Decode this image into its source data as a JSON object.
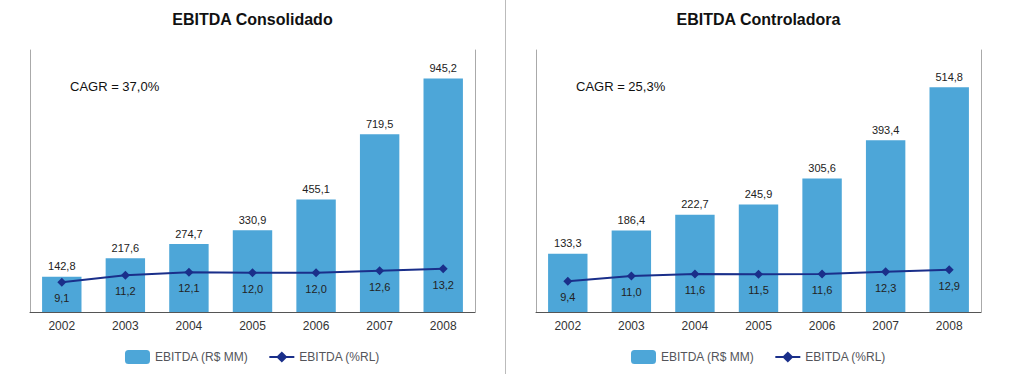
{
  "chart_data": [
    {
      "type": "bar",
      "title": "EBITDA Consolidado",
      "categories": [
        "2002",
        "2003",
        "2004",
        "2005",
        "2006",
        "2007",
        "2008"
      ],
      "series": [
        {
          "name": "EBITDA (R$ MM)",
          "type": "bar",
          "color": "#4da6d8",
          "values": [
            142.8,
            217.6,
            274.7,
            330.9,
            455.1,
            719.5,
            945.2
          ],
          "value_labels": [
            "142,8",
            "217,6",
            "274,7",
            "330,9",
            "455,1",
            "719,5",
            "945,2"
          ]
        },
        {
          "name": "EBITDA (%RL)",
          "type": "line",
          "axis": "y2",
          "color": "#1a2f8a",
          "marker": "diamond",
          "values": [
            9.1,
            11.2,
            12.1,
            12.0,
            12.0,
            12.6,
            13.2
          ],
          "value_labels": [
            "9,1",
            "11,2",
            "12,1",
            "12,0",
            "12,0",
            "12,6",
            "13,2"
          ]
        }
      ],
      "ylim": [
        0,
        1060
      ],
      "y2lim": [
        0,
        80
      ],
      "annotations": [
        "CAGR = 37,0%"
      ],
      "data_labels": true,
      "legend": "bottom",
      "grid": false,
      "tick_labels": "x"
    },
    {
      "type": "bar",
      "title": "EBITDA Controladora",
      "categories": [
        "2002",
        "2003",
        "2004",
        "2005",
        "2006",
        "2007",
        "2008"
      ],
      "series": [
        {
          "name": "EBITDA (R$ MM)",
          "type": "bar",
          "color": "#4da6d8",
          "values": [
            133.3,
            186.4,
            222.7,
            245.9,
            305.6,
            393.4,
            514.8
          ],
          "value_labels": [
            "133,3",
            "186,4",
            "222,7",
            "245,9",
            "305,6",
            "393,4",
            "514,8"
          ]
        },
        {
          "name": "EBITDA (%RL)",
          "type": "line",
          "axis": "y2",
          "color": "#1a2f8a",
          "marker": "diamond",
          "values": [
            9.4,
            11.0,
            11.6,
            11.5,
            11.6,
            12.3,
            12.9
          ],
          "value_labels": [
            "9,4",
            "11,0",
            "11,6",
            "11,5",
            "11,6",
            "12,3",
            "12,9"
          ]
        }
      ],
      "ylim": [
        0,
        600
      ],
      "y2lim": [
        0,
        80
      ],
      "annotations": [
        "CAGR = 25,3%"
      ],
      "data_labels": true,
      "legend": "bottom",
      "grid": false,
      "tick_labels": "x"
    }
  ]
}
